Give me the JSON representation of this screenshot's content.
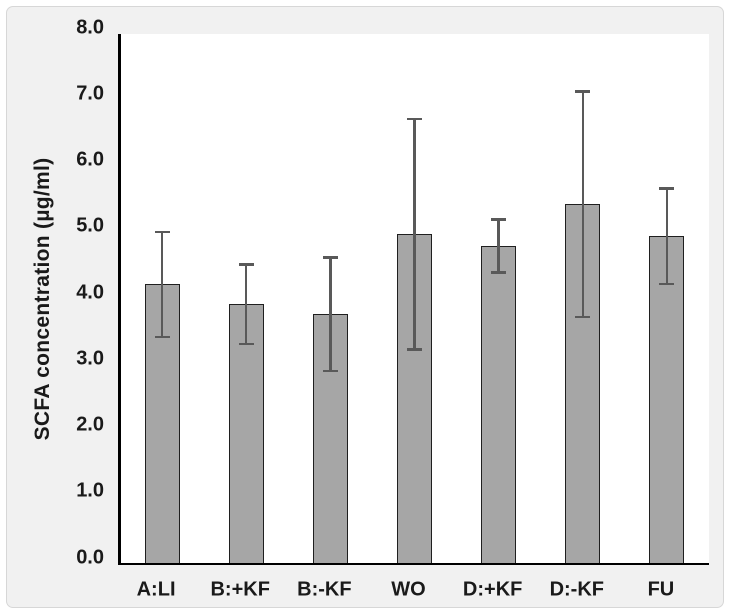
{
  "chart_data": {
    "type": "bar",
    "title": "",
    "xlabel": "",
    "ylabel": "SCFA concentration (µg/ml)",
    "categories": [
      "A:LI",
      "B:+KF",
      "B:-KF",
      "WO",
      "D:+KF",
      "D:-KF",
      "FU"
    ],
    "values": [
      4.22,
      3.92,
      3.77,
      4.98,
      4.8,
      5.43,
      4.95
    ],
    "error_bars": [
      0.79,
      0.6,
      0.86,
      1.74,
      0.4,
      1.7,
      0.72
    ],
    "ylim": [
      0,
      8
    ],
    "ytick_labels": [
      "0.0",
      "1.0",
      "2.0",
      "3.0",
      "4.0",
      "5.0",
      "6.0",
      "7.0",
      "8.0"
    ],
    "grid": "off",
    "legend": "none",
    "colors": {
      "bar_fill": "#a6a6a6",
      "bar_border": "#1f1f1f",
      "error_bar": "#595959",
      "axis": "#000000",
      "panel_background": "#f1f1f1",
      "panel_border": "#d7d7d7",
      "plot_background": "#ffffff",
      "text": "#1a1a1a"
    }
  }
}
